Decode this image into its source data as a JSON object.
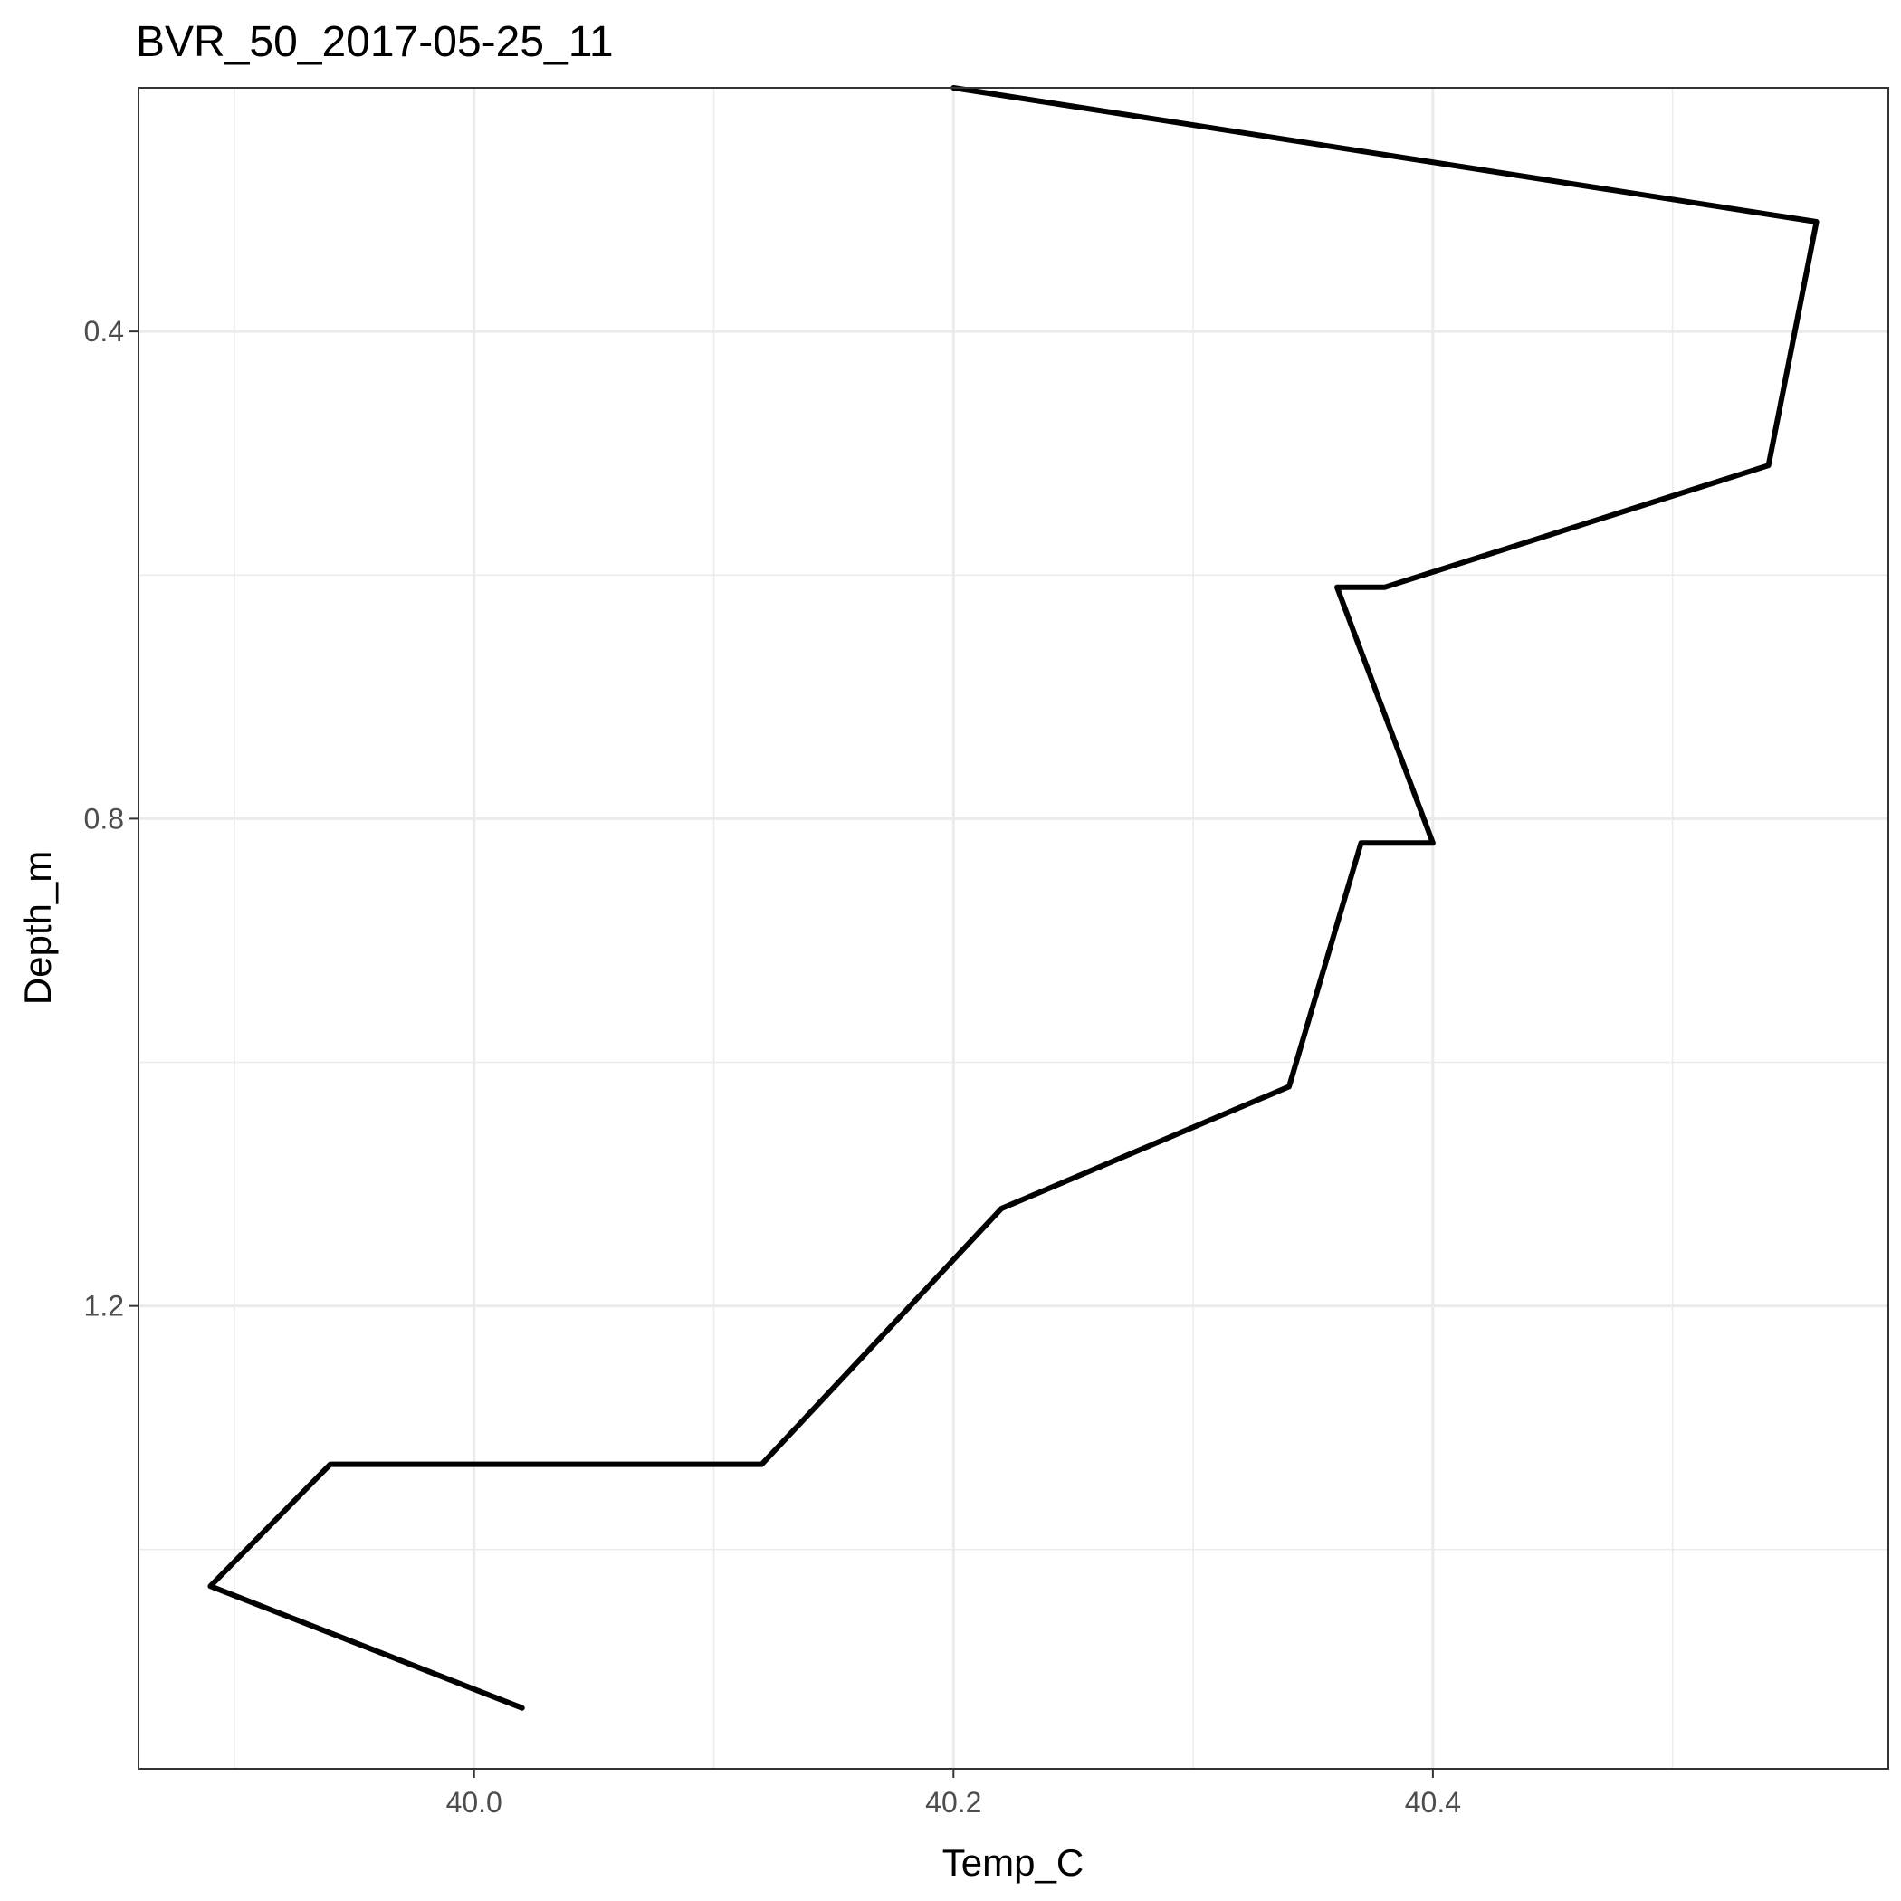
{
  "chart_data": {
    "type": "line",
    "title": "BVR_50_2017-05-25_11",
    "xlabel": "Temp_C",
    "ylabel": "Depth_m",
    "xlim": [
      39.86,
      40.59
    ],
    "ylim": [
      0.2,
      1.58
    ],
    "y_reversed": true,
    "x_ticks": [
      40.0,
      40.2,
      40.4
    ],
    "x_tick_labels": [
      "40.0",
      "40.2",
      "40.4"
    ],
    "y_ticks": [
      0.4,
      0.8,
      1.2
    ],
    "y_tick_labels": [
      "0.4",
      "0.8",
      "1.2"
    ],
    "grid": true,
    "legend": "none",
    "line_color": "#000000",
    "series": [
      {
        "x": [
          40.2,
          40.56,
          40.54,
          40.38,
          40.36,
          40.4,
          40.37,
          40.34,
          40.22,
          40.12,
          39.94,
          39.89,
          40.02
        ],
        "y": [
          0.2,
          0.31,
          0.51,
          0.61,
          0.61,
          0.82,
          0.82,
          1.02,
          1.12,
          1.33,
          1.33,
          1.43,
          1.53
        ]
      }
    ]
  }
}
